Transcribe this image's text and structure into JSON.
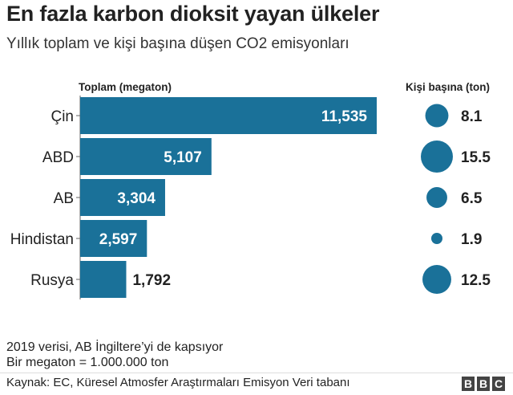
{
  "title": "En fazla karbon dioksit yayan ülkeler",
  "subtitle": "Yıllık toplam ve kişi başına düşen CO2 emisyonları",
  "colors": {
    "bar": "#1a7199",
    "bubble": "#1a7199",
    "label_in": "#ffffff",
    "label_out": "#222222"
  },
  "chart_data": {
    "type": "bar",
    "orientation": "horizontal",
    "xlabel": "Toplam (megaton)",
    "secondary_label": "Kişi başına (ton)",
    "categories": [
      "Çin",
      "ABD",
      "AB",
      "Hindistan",
      "Rusya"
    ],
    "series": [
      {
        "name": "Toplam (megaton)",
        "values": [
          11535,
          5107,
          3304,
          2597,
          1792
        ],
        "labels": [
          "11,535",
          "5,107",
          "3,304",
          "2,597",
          "1,792"
        ]
      },
      {
        "name": "Kişi başına (ton)",
        "encoding": "bubble-area",
        "values": [
          8.1,
          15.5,
          6.5,
          1.9,
          12.5
        ],
        "labels": [
          "8.1",
          "15.5",
          "6.5",
          "1.9",
          "12.5"
        ]
      }
    ],
    "xlim": [
      0,
      11535
    ],
    "grid": false,
    "legend": "none"
  },
  "notes": [
    "2019 verisi, AB İngiltere’yi de kapsıyor",
    "Bir megaton = 1.000.000 ton"
  ],
  "source": "Kaynak: EC, Küresel Atmosfer Araştırmaları Emisyon Veri tabanı",
  "logo": [
    "B",
    "B",
    "C"
  ]
}
